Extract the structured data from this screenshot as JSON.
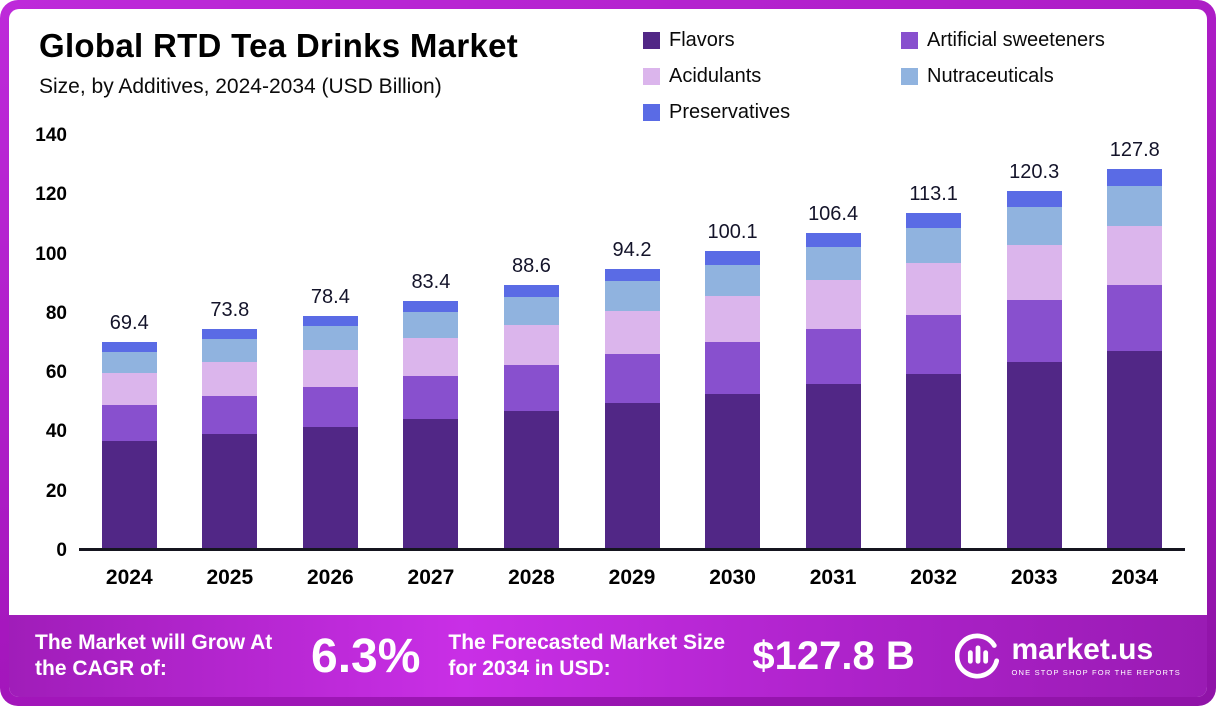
{
  "chart_data": {
    "type": "bar",
    "stacked": true,
    "title": "Global RTD Tea Drinks Market",
    "subtitle": "Size, by Additives, 2024-2034 (USD Billion)",
    "unit": "USD Billion",
    "categories": [
      "2024",
      "2025",
      "2026",
      "2027",
      "2028",
      "2029",
      "2030",
      "2031",
      "2032",
      "2033",
      "2034"
    ],
    "totals": [
      69.4,
      73.8,
      78.4,
      83.4,
      88.6,
      94.2,
      100.1,
      106.4,
      113.1,
      120.3,
      127.8
    ],
    "series": [
      {
        "name": "Flavors",
        "color": "#512786",
        "values": [
          36.1,
          38.4,
          40.8,
          43.4,
          46.1,
          49.0,
          52.1,
          55.3,
          58.8,
          62.6,
          66.5
        ]
      },
      {
        "name": "Artificial sweeteners",
        "color": "#8850CE",
        "values": [
          12.1,
          12.9,
          13.7,
          14.6,
          15.5,
          16.5,
          17.5,
          18.6,
          19.8,
          21.1,
          22.4
        ]
      },
      {
        "name": "Acidulants",
        "color": "#DBB5EC",
        "values": [
          10.8,
          11.4,
          12.2,
          12.9,
          13.7,
          14.6,
          15.5,
          16.5,
          17.5,
          18.6,
          19.8
        ]
      },
      {
        "name": "Nutraceuticals",
        "color": "#90B3DF",
        "values": [
          7.3,
          7.7,
          8.2,
          8.8,
          9.3,
          9.9,
          10.5,
          11.2,
          11.9,
          12.6,
          13.4
        ]
      },
      {
        "name": "Preservatives",
        "color": "#5A6BE5",
        "values": [
          3.1,
          3.4,
          3.5,
          3.7,
          4.0,
          4.2,
          4.5,
          4.8,
          5.1,
          5.4,
          5.7
        ]
      }
    ],
    "ylim": [
      0,
      140
    ],
    "yticks": [
      0,
      20,
      40,
      60,
      80,
      100,
      120,
      140
    ],
    "legend_position": "top-right",
    "grid": false
  },
  "footer": {
    "cagr_label": "The Market will Grow At the CAGR of:",
    "cagr_value": "6.3%",
    "forecast_label": "The Forecasted Market Size for 2034 in USD:",
    "forecast_value": "$127.8 B",
    "brand": "market.us",
    "brand_tagline": "One Stop Shop For The Reports"
  }
}
